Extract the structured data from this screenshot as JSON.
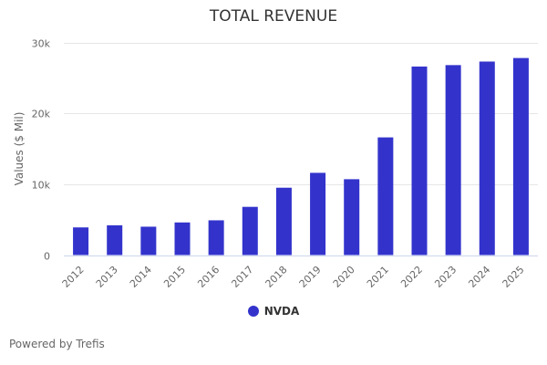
{
  "chart_data": {
    "type": "bar",
    "title": "TOTAL REVENUE",
    "xlabel": "",
    "ylabel": "Values ($ Mil)",
    "ylim": [
      0,
      30000
    ],
    "yticks": [
      0,
      10000,
      20000,
      30000
    ],
    "ytick_labels": [
      "0",
      "10k",
      "20k",
      "30k"
    ],
    "grid": true,
    "legend_position": "bottom",
    "categories": [
      "2012",
      "2013",
      "2014",
      "2015",
      "2016",
      "2017",
      "2018",
      "2019",
      "2020",
      "2021",
      "2022",
      "2023",
      "2024",
      "2025"
    ],
    "series": [
      {
        "name": "NVDA",
        "color": "#3333cc",
        "values": [
          3900,
          4200,
          4000,
          4600,
          4900,
          6800,
          9500,
          11600,
          10700,
          16600,
          26600,
          26800,
          27300,
          27800
        ]
      }
    ]
  },
  "footer": {
    "credit": "Powered by Trefis"
  }
}
